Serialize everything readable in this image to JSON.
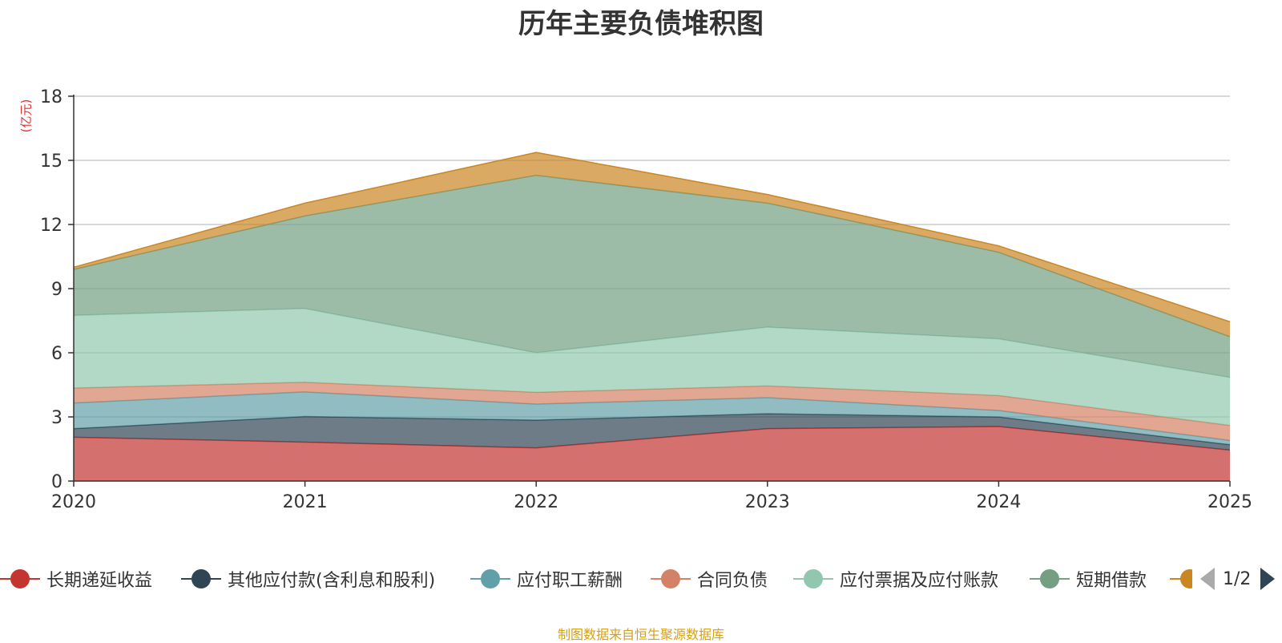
{
  "title": "历年主要负债堆积图",
  "unit_label": "(亿元)",
  "source": "制图数据来自恒生聚源数据库",
  "pager": {
    "text": "1/2"
  },
  "legend": [
    {
      "label": "长期递延收益",
      "color": "#c23531"
    },
    {
      "label": "其他应付款(含利息和股利)",
      "color": "#2f4554"
    },
    {
      "label": "应付职工薪酬",
      "color": "#61a0a8"
    },
    {
      "label": "合同负债",
      "color": "#d48265"
    },
    {
      "label": "应付票据及应付账款",
      "color": "#91c7ae"
    },
    {
      "label": "短期借款",
      "color": "#749f83"
    },
    {
      "label": "",
      "color": "#ca8622"
    }
  ],
  "chart_data": {
    "type": "area",
    "stacked": true,
    "title": "历年主要负债堆积图",
    "ylabel": "(亿元)",
    "xlabel": "",
    "categories": [
      "2020",
      "2021",
      "2022",
      "2023",
      "2024",
      "2025"
    ],
    "ylim": [
      0,
      18
    ],
    "yticks": [
      0,
      3,
      6,
      9,
      12,
      15,
      18
    ],
    "grid": true,
    "series": [
      {
        "name": "长期递延收益",
        "color": "#c23531",
        "values": [
          2.05,
          1.82,
          1.55,
          2.45,
          2.55,
          1.45
        ]
      },
      {
        "name": "其他应付款(含利息和股利)",
        "color": "#2f4554",
        "values": [
          0.4,
          1.2,
          1.3,
          0.7,
          0.45,
          0.25
        ]
      },
      {
        "name": "应付职工薪酬",
        "color": "#61a0a8",
        "values": [
          1.2,
          1.15,
          0.75,
          0.75,
          0.3,
          0.2
        ]
      },
      {
        "name": "合同负债",
        "color": "#d48265",
        "values": [
          0.7,
          0.45,
          0.55,
          0.55,
          0.7,
          0.7
        ]
      },
      {
        "name": "应付票据及应付账款",
        "color": "#91c7ae",
        "values": [
          3.4,
          3.45,
          1.85,
          2.75,
          2.65,
          2.25
        ]
      },
      {
        "name": "短期借款",
        "color": "#749f83",
        "values": [
          2.15,
          4.33,
          8.3,
          5.8,
          4.05,
          1.9
        ]
      },
      {
        "name": "",
        "color": "#ca8622",
        "values": [
          0.1,
          0.6,
          1.07,
          0.4,
          0.3,
          0.7
        ]
      }
    ]
  }
}
